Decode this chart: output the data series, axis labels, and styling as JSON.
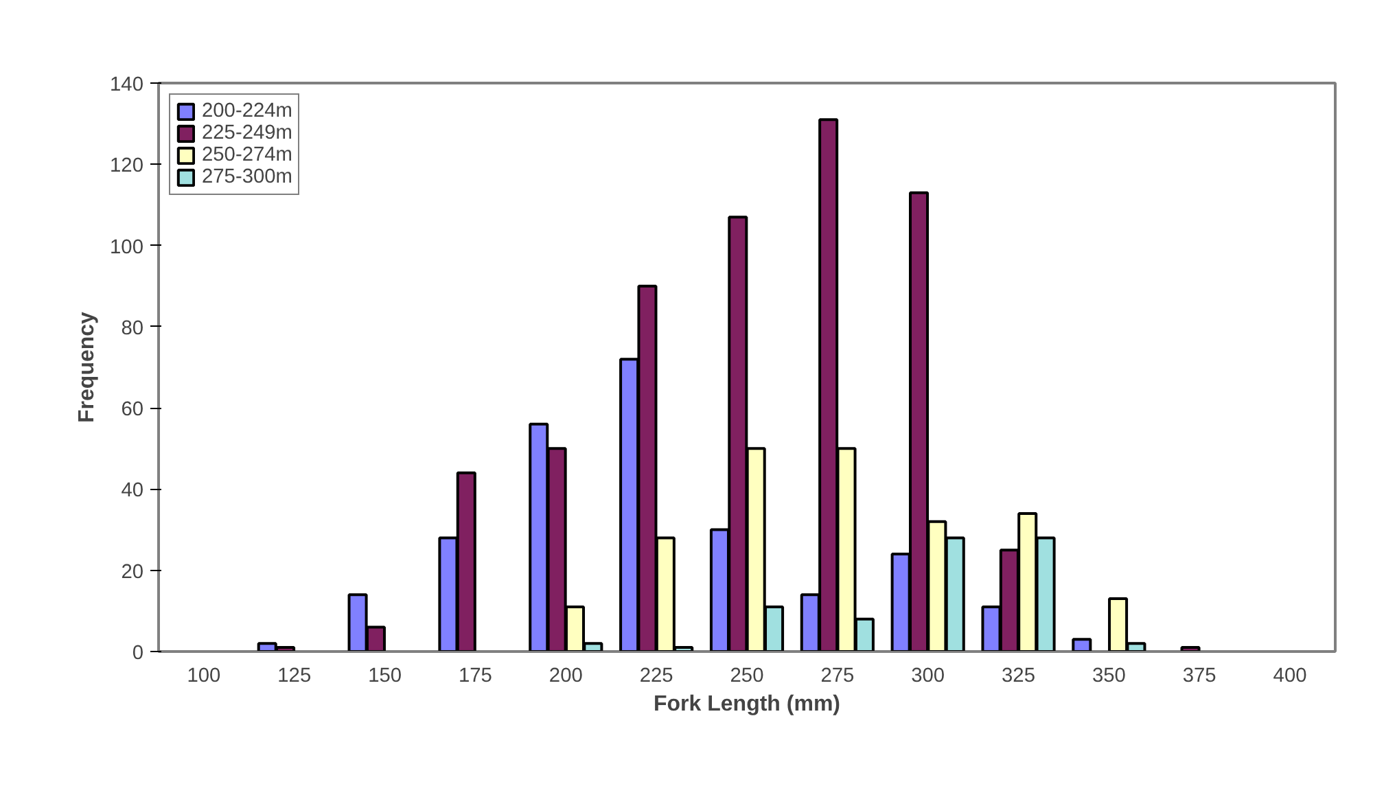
{
  "chart_data": {
    "type": "bar",
    "xlabel": "Fork Length (mm)",
    "ylabel": "Frequency",
    "categories": [
      "100",
      "125",
      "150",
      "175",
      "200",
      "225",
      "250",
      "275",
      "300",
      "325",
      "350",
      "375",
      "400"
    ],
    "series": [
      {
        "name": "200-224m",
        "color": "#8080ff",
        "values": [
          null,
          2,
          14,
          28,
          56,
          72,
          30,
          14,
          24,
          11,
          3,
          null,
          null
        ]
      },
      {
        "name": "225-249m",
        "color": "#802060",
        "values": [
          null,
          1,
          6,
          44,
          50,
          90,
          107,
          131,
          113,
          25,
          null,
          1,
          null
        ]
      },
      {
        "name": "250-274m",
        "color": "#ffffc0",
        "values": [
          null,
          null,
          null,
          null,
          11,
          28,
          50,
          50,
          32,
          34,
          13,
          null,
          null
        ]
      },
      {
        "name": "275-300m",
        "color": "#a0e0e0",
        "values": [
          null,
          null,
          null,
          null,
          2,
          1,
          11,
          8,
          28,
          28,
          2,
          null,
          null
        ]
      }
    ],
    "ylim": [
      0,
      140
    ],
    "yticks": [
      0,
      20,
      40,
      60,
      80,
      100,
      120,
      140
    ],
    "grid": false,
    "legend": "top left"
  }
}
